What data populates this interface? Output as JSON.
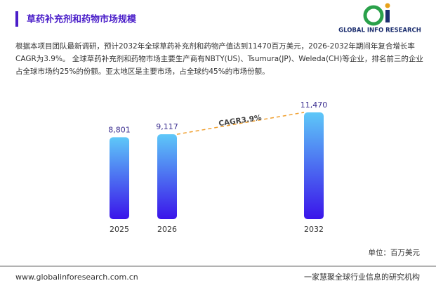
{
  "header": {
    "title": "草药补充剂和药物市场规模",
    "logo_text": "GLOBAL INFO RESEARCH"
  },
  "paragraph": [
    "根据本项目团队最新调研，预计2032年全球草药补充剂和药物产值达到11470百万美元，2026-2032年期间年复合增长率",
    "CAGR为3.9%。 全球草药补充剂和药物市场主要生产商有NBTY(US)、Tsumura(JP)、Weleda(CH)等企业，排名前三的企业",
    "占全球市场约25%的份额。亚太地区是主要市场，占全球约45%的市场份额。"
  ],
  "chart_data": {
    "type": "bar",
    "categories": [
      "2025",
      "2026",
      "2032"
    ],
    "values": [
      8801,
      9117,
      11470
    ],
    "value_labels": [
      "8,801",
      "9,117",
      "11,470"
    ],
    "colors": [
      "#5ec8f8",
      "#3a14ea"
    ],
    "annotation": "CAGR3.9%",
    "unit": "单位：百万美元"
  },
  "footer": {
    "url": "www.globalinforesearch.com.cn",
    "slogan": "一家慧聚全球行业信息的研究机构"
  }
}
